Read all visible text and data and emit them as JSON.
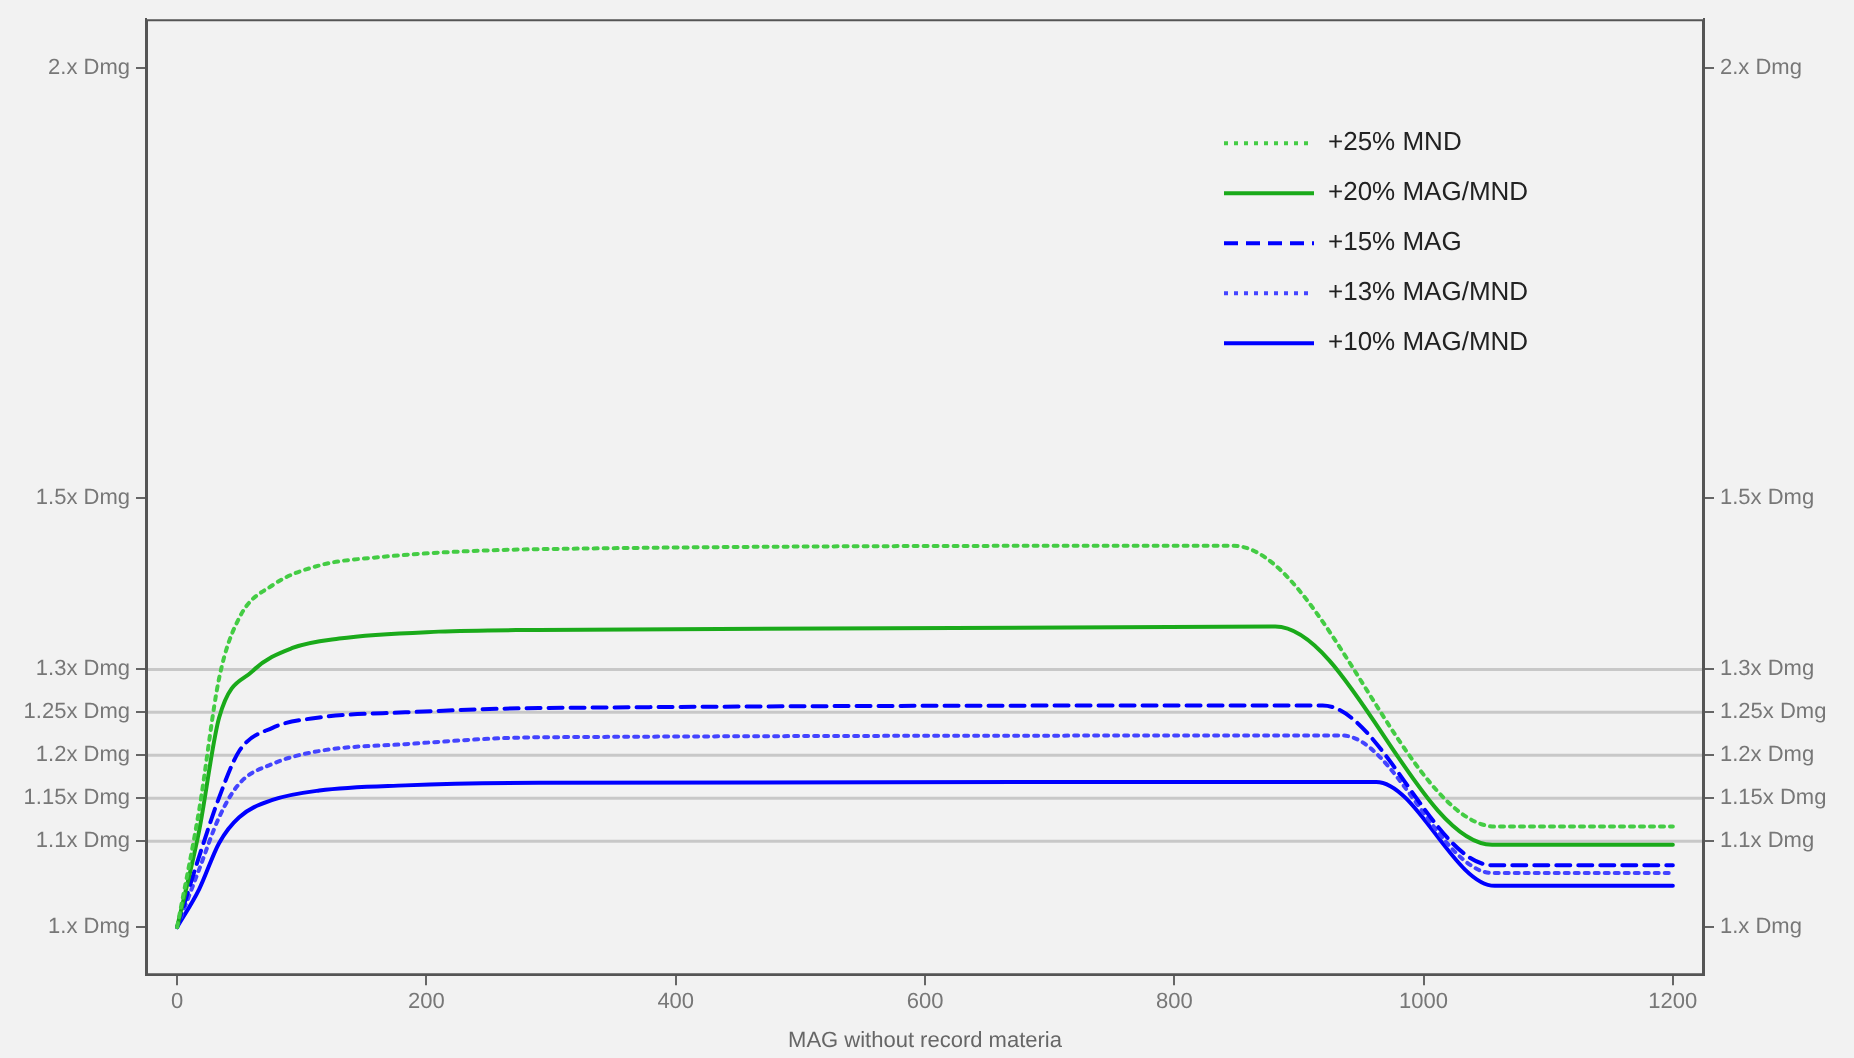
{
  "chart_data": {
    "type": "line",
    "xlabel": "MAG without record materia",
    "xlim": [
      -25,
      1225
    ],
    "xticks": [
      0,
      200,
      400,
      600,
      800,
      1000,
      1200
    ],
    "ylim": [
      0.944,
      2.057
    ],
    "yticks": [
      {
        "value": 1,
        "label": "1.x Dmg"
      },
      {
        "value": 1.1,
        "label": "1.1x Dmg"
      },
      {
        "value": 1.15,
        "label": "1.15x Dmg"
      },
      {
        "value": 1.2,
        "label": "1.2x Dmg"
      },
      {
        "value": 1.25,
        "label": "1.25x Dmg"
      },
      {
        "value": 1.3,
        "label": "1.3x Dmg"
      },
      {
        "value": 1.5,
        "label": "1.5x Dmg"
      },
      {
        "value": 2,
        "label": "2.x Dmg"
      }
    ],
    "y2lim": [
      0.944,
      2.057
    ],
    "y2ticks": [
      {
        "value": 1,
        "label": "1.x Dmg"
      },
      {
        "value": 1.1,
        "label": "1.1x Dmg"
      },
      {
        "value": 1.15,
        "label": "1.15x Dmg"
      },
      {
        "value": 1.2,
        "label": "1.2x Dmg"
      },
      {
        "value": 1.25,
        "label": "1.25x Dmg"
      },
      {
        "value": 1.3,
        "label": "1.3x Dmg"
      },
      {
        "value": 1.5,
        "label": "1.5x Dmg"
      },
      {
        "value": 2,
        "label": "2.x Dmg"
      }
    ],
    "grid": false,
    "legend": "top right",
    "marker": "none",
    "ref_lines": [
      {
        "axis": "y",
        "value": 1.1,
        "color": "#c8c8c8"
      },
      {
        "axis": "y",
        "value": 1.15,
        "color": "#c8c8c8"
      },
      {
        "axis": "y",
        "value": 1.2,
        "color": "#c8c8c8"
      },
      {
        "axis": "y",
        "value": 1.25,
        "color": "#c8c8c8"
      },
      {
        "axis": "y",
        "value": 1.3,
        "color": "#c8c8c8"
      }
    ],
    "series": [
      {
        "name": "+25% MND",
        "color": "#44cc44",
        "line_style": "dotted",
        "x": [
          0,
          17.6,
          33.7,
          49.8,
          76.5,
          114,
          157,
          290,
          847,
          1058,
          1200
        ],
        "values": [
          1.0,
          1.136,
          1.29,
          1.36,
          1.398,
          1.421,
          1.43,
          1.44,
          1.444,
          1.117,
          1.117
        ]
      },
      {
        "name": "+20% MAG/MND",
        "color": "#1aaa1a",
        "line_style": "solid",
        "x": [
          0,
          17.6,
          33.7,
          60.5,
          92.5,
          130,
          210,
          290,
          881,
          1055,
          1200
        ],
        "values": [
          1.0,
          1.112,
          1.244,
          1.298,
          1.325,
          1.336,
          1.344,
          1.346,
          1.35,
          1.096,
          1.096
        ]
      },
      {
        "name": "+15% MAG",
        "color": "#0000ff",
        "line_style": "dashed",
        "x": [
          0,
          17.6,
          33.7,
          49.8,
          76.5,
          114,
          183,
          290,
          919,
          1055,
          1200
        ],
        "values": [
          1.0,
          1.082,
          1.151,
          1.205,
          1.232,
          1.244,
          1.25,
          1.255,
          1.258,
          1.072,
          1.072
        ]
      },
      {
        "name": "+13% MAG/MND",
        "color": "#4444ff",
        "line_style": "dotted",
        "x": [
          0,
          17.6,
          33.7,
          49.8,
          76.5,
          114,
          183,
          290,
          935,
          1055,
          1200
        ],
        "values": [
          1.0,
          1.067,
          1.128,
          1.167,
          1.19,
          1.205,
          1.213,
          1.221,
          1.223,
          1.063,
          1.063
        ]
      },
      {
        "name": "+10% MAG/MND",
        "color": "#0000ff",
        "line_style": "solid",
        "x": [
          0,
          17.6,
          33.7,
          49.8,
          76.5,
          114,
          183,
          290,
          962,
          1057,
          1200
        ],
        "values": [
          1.0,
          1.044,
          1.098,
          1.128,
          1.148,
          1.159,
          1.165,
          1.168,
          1.169,
          1.048,
          1.048
        ]
      }
    ]
  }
}
